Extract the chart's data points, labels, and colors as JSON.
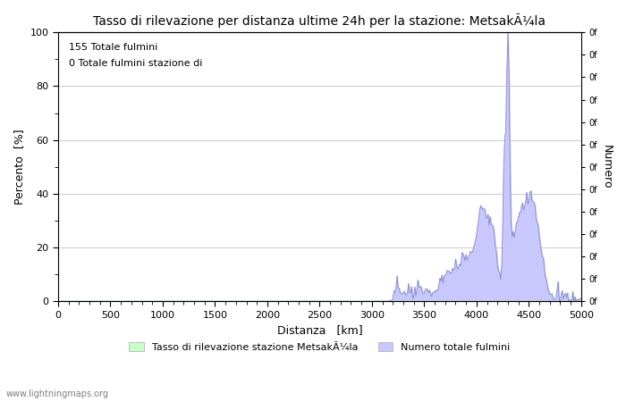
{
  "title": "Tasso di rilevazione per distanza ultime 24h per la stazione: MetsakÃ¼la",
  "xlabel": "Distanza   [km]",
  "ylabel_left": "Percento  [%]",
  "ylabel_right": "Numero",
  "annotation_line1": "155 Totale fulmini",
  "annotation_line2": "0 Totale fulmini stazione di",
  "xlim": [
    0,
    5000
  ],
  "ylim_left": [
    0,
    100
  ],
  "xticks": [
    0,
    500,
    1000,
    1500,
    2000,
    2500,
    3000,
    3500,
    4000,
    4500,
    5000
  ],
  "yticks_left": [
    0,
    20,
    40,
    60,
    80,
    100
  ],
  "yticks_right_labels": [
    "0f",
    "0f",
    "0f",
    "0f",
    "0f",
    "0f",
    "0f",
    "0f",
    "0f",
    "0f",
    "0f",
    "0f",
    "0f"
  ],
  "legend_left_label": "Tasso di rilevazione stazione MetsakÃ¼la",
  "legend_right_label": "Numero totale fulmini",
  "watermark": "www.lightningmaps.org",
  "bg_color": "#ffffff",
  "grid_color": "#cccccc",
  "fill_color_blue": "#c8c8ff",
  "line_color_blue": "#8888cc",
  "fill_color_green": "#c8ffc8",
  "line_color_green": "#88cc88"
}
